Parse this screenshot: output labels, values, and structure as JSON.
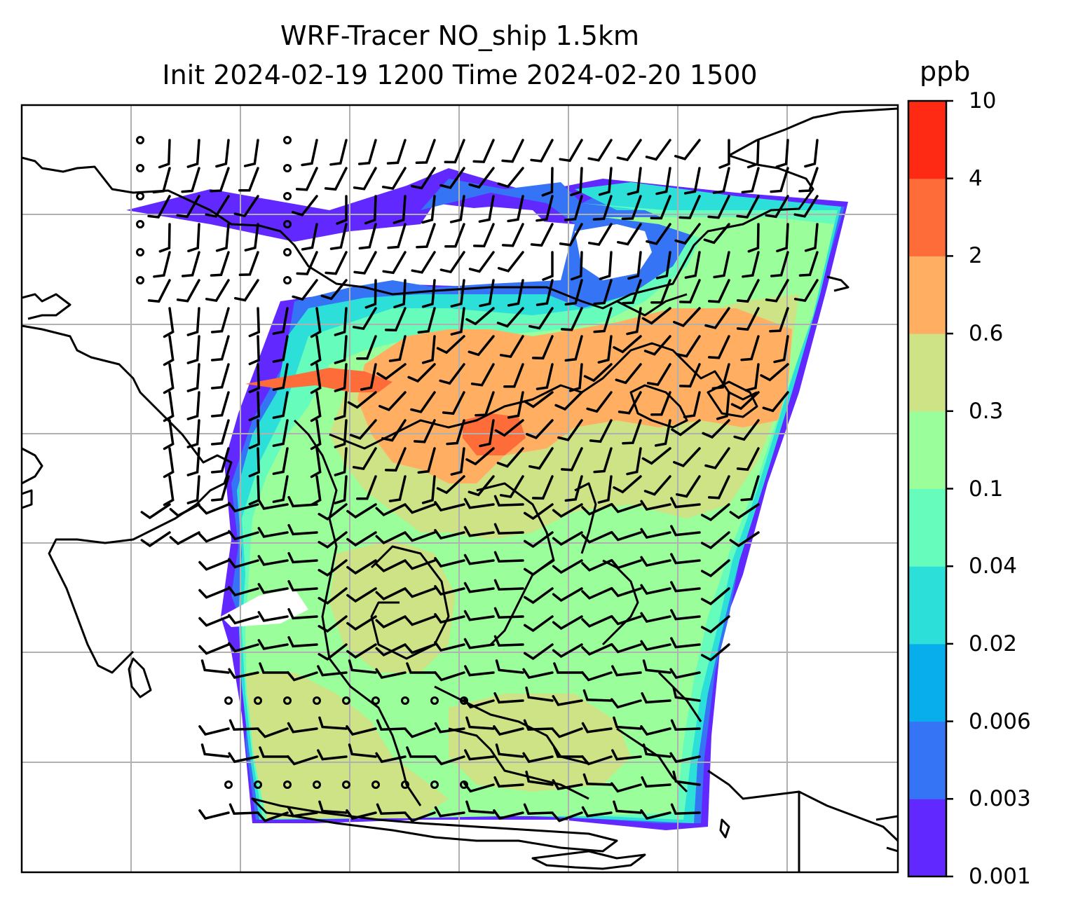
{
  "title_line1": "WRF-Tracer NO_ship 1.5km",
  "title_line2": "Init 2024-02-19 1200 Time 2024-02-20 1500",
  "colorbar": {
    "unit": "ppb",
    "ticks": [
      "10",
      "4",
      "2",
      "0.6",
      "0.3",
      "0.1",
      "0.04",
      "0.02",
      "0.006",
      "0.003",
      "0.001"
    ],
    "colors": [
      "#6129ff",
      "#3574f5",
      "#08aeec",
      "#2cdfd8",
      "#66fcbc",
      "#9afe9a",
      "#cde385",
      "#ffae62",
      "#fe6c3a",
      "#ff2a14"
    ]
  },
  "palette": {
    "land_outline": "#000000",
    "gridline": "#b0b0b0",
    "barb": "#000000"
  }
}
